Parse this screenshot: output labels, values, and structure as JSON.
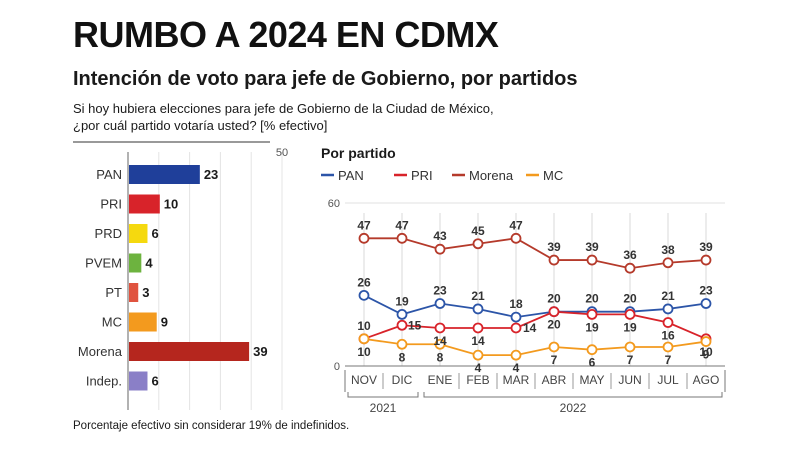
{
  "header": {
    "title": "RUMBO A 2024 EN CDMX",
    "subtitle": "Intención de voto para jefe de Gobierno, por partidos",
    "question_line1": "Si hoy hubiera elecciones para jefe de Gobierno de la Ciudad de México,",
    "question_line2": "¿por cuál partido votaría usted? [% efectivo]"
  },
  "footnote": "Porcentaje efectivo sin considerar 19% de indefinidos.",
  "chart_data": [
    {
      "type": "bar",
      "orientation": "horizontal",
      "categories": [
        "PAN",
        "PRI",
        "PRD",
        "PVEM",
        "PT",
        "MC",
        "Morena",
        "Indep."
      ],
      "values": [
        23,
        10,
        6,
        4,
        3,
        9,
        39,
        6
      ],
      "colors": [
        "#1f3f9a",
        "#d8232a",
        "#f5d90f",
        "#6db33f",
        "#e0533f",
        "#f39a1e",
        "#b5261e",
        "#8a7fc7"
      ],
      "xlim": [
        0,
        50
      ],
      "ticks": [
        "50"
      ],
      "grid": true
    },
    {
      "type": "line",
      "title": "Por partido",
      "x": [
        "NOV",
        "DIC",
        "ENE",
        "FEB",
        "MAR",
        "ABR",
        "MAY",
        "JUN",
        "JUL",
        "AGO"
      ],
      "x_groups": [
        {
          "label": "2021",
          "from": 0,
          "to": 1
        },
        {
          "label": "2022",
          "from": 2,
          "to": 9
        }
      ],
      "ylim": [
        0,
        60
      ],
      "yticks": [
        "0",
        "60"
      ],
      "legend": "top",
      "series": [
        {
          "name": "PAN",
          "color": "#2c55a8",
          "values": [
            26,
            19,
            23,
            21,
            18,
            20,
            20,
            20,
            21,
            23
          ]
        },
        {
          "name": "PRI",
          "color": "#d8232a",
          "values": [
            10,
            15,
            14,
            14,
            14,
            20,
            19,
            19,
            16,
            10
          ]
        },
        {
          "name": "Morena",
          "color": "#b53a2b",
          "values": [
            47,
            47,
            43,
            45,
            47,
            39,
            39,
            36,
            38,
            39
          ]
        },
        {
          "name": "MC",
          "color": "#f39a1e",
          "values": [
            10,
            8,
            8,
            4,
            4,
            7,
            6,
            7,
            7,
            9
          ]
        }
      ]
    }
  ]
}
